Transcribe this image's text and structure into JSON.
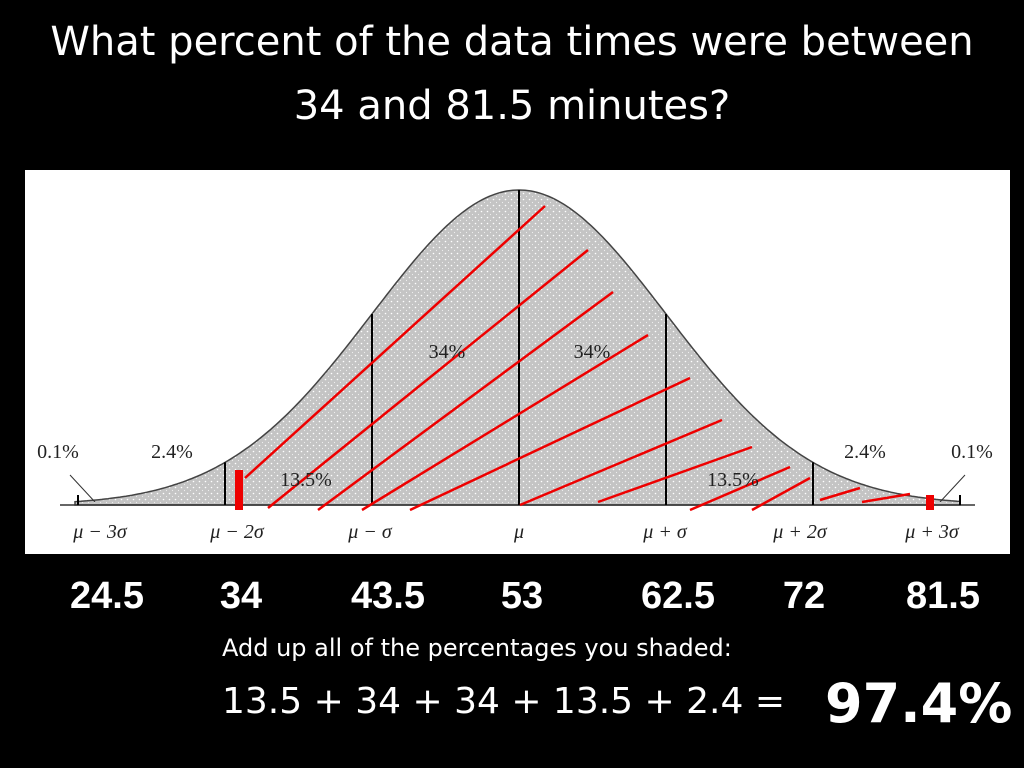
{
  "title": "What percent of the data times were between 34 and 81.5 minutes?",
  "diagram": {
    "region_labels": [
      "0.1%",
      "2.4%",
      "34%",
      "34%",
      "13.5%",
      "13.5%",
      "2.4%",
      "0.1%"
    ],
    "axis_labels": [
      "μ − 3σ",
      "μ − 2σ",
      "μ − σ",
      "μ",
      "μ + σ",
      "μ + 2σ",
      "μ + 3σ"
    ]
  },
  "values": [
    "24.5",
    "34",
    "43.5",
    "53",
    "62.5",
    "72",
    "81.5"
  ],
  "instruction": "Add up all of the percentages you shaded:",
  "equation": "13.5 + 34 + 34 + 13.5 + 2.4 =",
  "result": "97.4%"
}
